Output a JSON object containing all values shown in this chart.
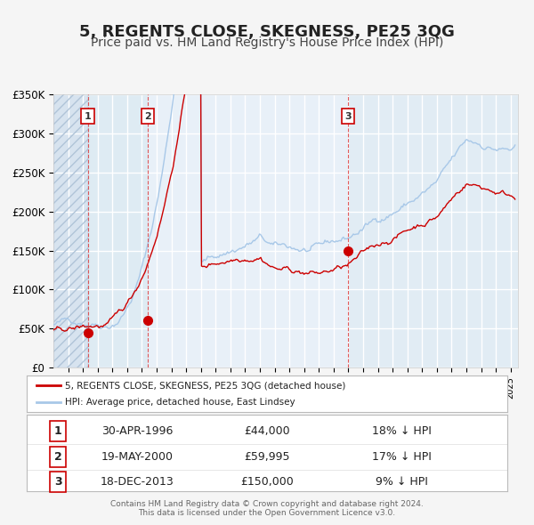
{
  "title": "5, REGENTS CLOSE, SKEGNESS, PE25 3QG",
  "subtitle": "Price paid vs. HM Land Registry's House Price Index (HPI)",
  "ylim": [
    0,
    350000
  ],
  "yticks": [
    0,
    50000,
    100000,
    150000,
    200000,
    250000,
    300000,
    350000
  ],
  "ytick_labels": [
    "£0",
    "£50K",
    "£100K",
    "£150K",
    "£200K",
    "£250K",
    "£300K",
    "£350K"
  ],
  "xlim_start": 1994.0,
  "xlim_end": 2025.5,
  "hpi_color": "#a8c8e8",
  "price_color": "#cc0000",
  "bg_color": "#dce9f5",
  "plot_bg": "#e8f0f8",
  "hatch_bg": "#d0dce8",
  "grid_color": "#ffffff",
  "transaction_dates": [
    1996.33,
    2000.38,
    2013.96
  ],
  "transaction_prices": [
    44000,
    59995,
    150000
  ],
  "transaction_labels": [
    "1",
    "2",
    "3"
  ],
  "vline_colors": [
    "#dd0000",
    "#dd0000",
    "#cc88aa"
  ],
  "legend_price_label": "5, REGENTS CLOSE, SKEGNESS, PE25 3QG (detached house)",
  "legend_hpi_label": "HPI: Average price, detached house, East Lindsey",
  "table_data": [
    [
      "1",
      "30-APR-1996",
      "£44,000",
      "18% ↓ HPI"
    ],
    [
      "2",
      "19-MAY-2000",
      "£59,995",
      "17% ↓ HPI"
    ],
    [
      "3",
      "18-DEC-2013",
      "£150,000",
      "9% ↓ HPI"
    ]
  ],
  "footer": "Contains HM Land Registry data © Crown copyright and database right 2024.\nThis data is licensed under the Open Government Licence v3.0.",
  "title_fontsize": 13,
  "subtitle_fontsize": 10
}
